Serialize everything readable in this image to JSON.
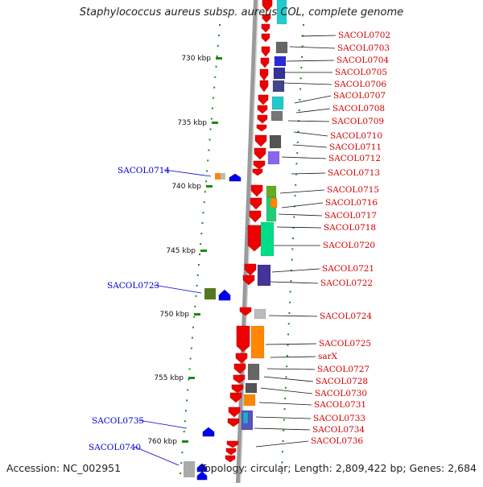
{
  "title": "Staphylococcus aureus subsp. aureus COL, complete genome",
  "accession_text": "Accession: NC_002951",
  "info_text": "Topology: circular; Length: 2,809,422 bp; Genes: 2,684",
  "colors": {
    "label_right": "#d40000",
    "label_left": "#0000d0",
    "strand_arrow": "#ee0000",
    "reverse_arrow": "#0000ee",
    "tick": "#1a8a1a",
    "backbone": "#888888"
  },
  "kbp_labels": [
    "730 kbp",
    "735 kbp",
    "740 kbp",
    "745 kbp",
    "750 kbp",
    "755 kbp",
    "760 kbp"
  ],
  "genes_right": [
    "SACOL0702",
    "SACOL0703",
    "SACOL0704",
    "SACOL0705",
    "SACOL0706",
    "SACOL0707",
    "SACOL0708",
    "SACOL0709",
    "SACOL0710",
    "SACOL0711",
    "SACOL0712",
    "SACOL0713",
    "SACOL0715",
    "SACOL0716",
    "SACOL0717",
    "SACOL0718",
    "SACOL0720",
    "SACOL0721",
    "SACOL0722",
    "SACOL0724",
    "SACOL0725",
    "sarX",
    "SACOL0727",
    "SACOL0728",
    "SACOL0730",
    "SACOL0731",
    "SACOL0733",
    "SACOL0734",
    "SACOL0736"
  ],
  "genes_left": [
    "SACOL0714",
    "SACOL0723",
    "SACOL0735",
    "SACOL0740"
  ]
}
